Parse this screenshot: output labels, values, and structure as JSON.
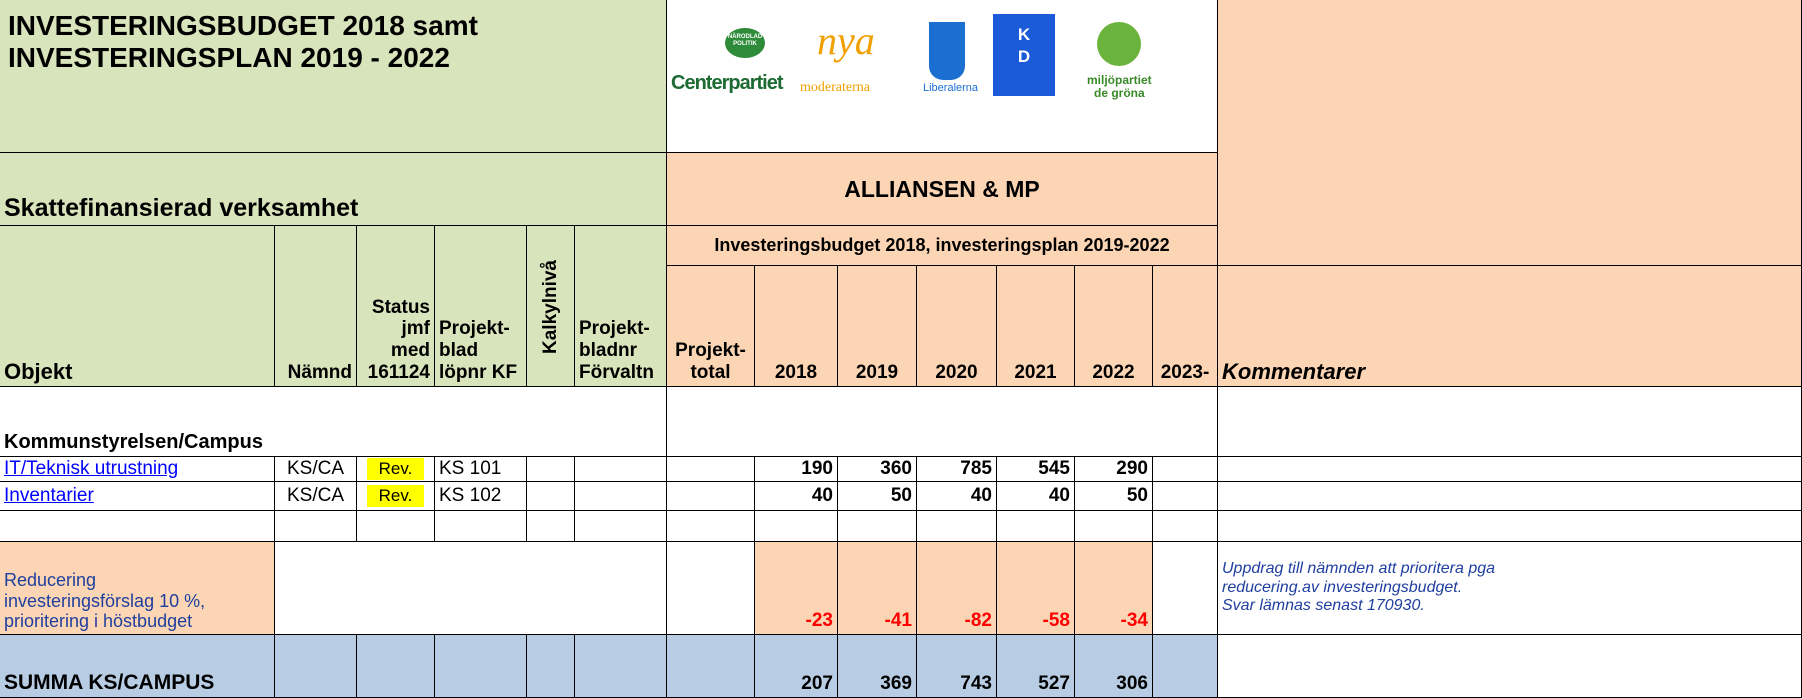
{
  "title": "INVESTERINGSBUDGET 2018  samt\nINVESTERINGSPLAN 2019 - 2022",
  "logos": {
    "badge": "NÄRODLAD\nPOLITIK",
    "c": "Centerpartiet",
    "nya": "nya",
    "m": "moderaterna",
    "l": "Liberalerna",
    "kd": "K\nD",
    "mp": "miljöpartiet\nde gröna"
  },
  "section": "Skattefinansierad verksamhet",
  "banner": "ALLIANSEN & MP",
  "subbanner": "Investeringsbudget 2018, investeringsplan 2019-2022",
  "columns": [
    "Objekt",
    "Nämnd",
    "Status\njmf med\n161124",
    "Projekt-\nblad\nlöpnr KF",
    "Kalkylnivå",
    "Projekt-\nbladnr\nFörvaltn",
    "Projekt-\ntotal",
    "2018",
    "2019",
    "2020",
    "2021",
    "2022",
    "2023-",
    "Kommentarer"
  ],
  "group": "Kommunstyrelsen/Campus",
  "rows": [
    {
      "objekt": "IT/Teknisk utrustning",
      "namnd": "KS/CA",
      "status": "Rev.",
      "kf": "KS 101",
      "values": [
        190,
        360,
        785,
        545,
        290
      ]
    },
    {
      "objekt": "Inventarier",
      "namnd": "KS/CA",
      "status": "Rev.",
      "kf": "KS 102",
      "values": [
        40,
        50,
        40,
        40,
        50
      ]
    }
  ],
  "reduction": {
    "label": "Reducering\ninvesteringsförslag 10 %,\nprioritering i höstbudget",
    "values": [
      -23,
      -41,
      -82,
      -58,
      -34
    ],
    "comment": "Uppdrag till nämnden att prioritera pga\nreducering.av investeringsbudget.\nSvar lämnas senast 170930."
  },
  "total": {
    "label": "SUMMA KS/CAMPUS",
    "values": [
      207,
      369,
      743,
      527,
      306
    ]
  }
}
